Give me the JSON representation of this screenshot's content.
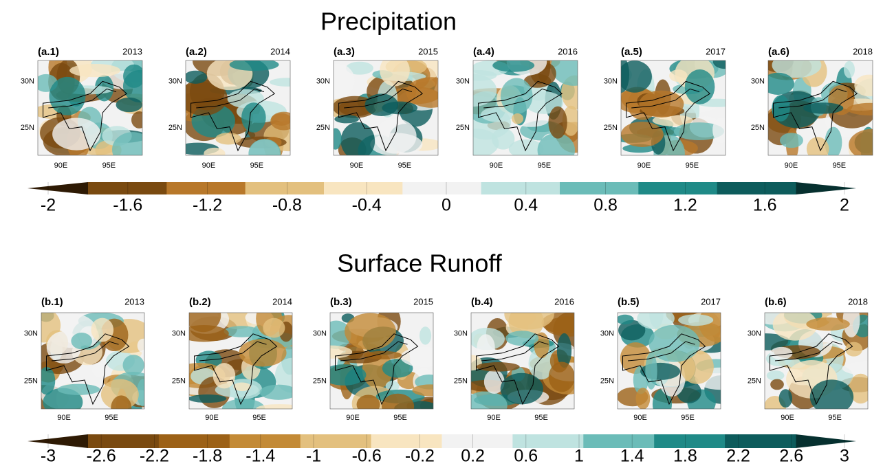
{
  "sections": [
    {
      "title": "Precipitation",
      "panels": [
        {
          "label": "(a.1)",
          "year": "2013"
        },
        {
          "label": "(a.2)",
          "year": "2014"
        },
        {
          "label": "(a.3)",
          "year": "2015"
        },
        {
          "label": "(a.4)",
          "year": "2016"
        },
        {
          "label": "(a.5)",
          "year": "2017"
        },
        {
          "label": "(a.6)",
          "year": "2018"
        }
      ],
      "lat_ticks": [
        "30N",
        "25N"
      ],
      "lon_ticks": [
        "90E",
        "95E"
      ],
      "colorbar": {
        "ticks": [
          -2,
          -1.6,
          -1.2,
          -0.8,
          -0.4,
          0,
          0.4,
          0.8,
          1.2,
          1.6,
          2
        ],
        "colors": [
          "#2e1a04",
          "#7a4a10",
          "#b8782a",
          "#e3c07e",
          "#f8e5c0",
          "#f2f2f2",
          "#bfe3e0",
          "#6bbcb8",
          "#1f8a87",
          "#0d5c5c",
          "#06302f"
        ]
      }
    },
    {
      "title": "Surface Runoff",
      "panels": [
        {
          "label": "(b.1)",
          "year": "2013"
        },
        {
          "label": "(b.2)",
          "year": "2014"
        },
        {
          "label": "(b.3)",
          "year": "2015"
        },
        {
          "label": "(b.4)",
          "year": "2016"
        },
        {
          "label": "(b.5)",
          "year": "2017"
        },
        {
          "label": "(b.6)",
          "year": "2018"
        }
      ],
      "lat_ticks": [
        "30N",
        "25N"
      ],
      "lon_ticks": [
        "90E",
        "95E"
      ],
      "colorbar": {
        "ticks": [
          -3,
          -2.6,
          -2.2,
          -1.8,
          -1.4,
          -1,
          -0.6,
          -0.2,
          0.2,
          0.6,
          1,
          1.4,
          1.8,
          2.2,
          2.6,
          3
        ],
        "colors": [
          "#2e1a04",
          "#7a4a10",
          "#9c6117",
          "#c38a36",
          "#e3c07e",
          "#f8e5c0",
          "#f2f2f2",
          "#bfe3e0",
          "#6bbcb8",
          "#1f8a87",
          "#0d5c5c",
          "#06302f"
        ]
      }
    }
  ]
}
